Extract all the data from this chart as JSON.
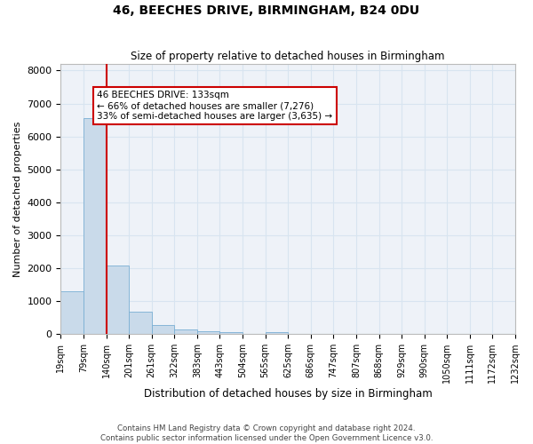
{
  "title1": "46, BEECHES DRIVE, BIRMINGHAM, B24 0DU",
  "title2": "Size of property relative to detached houses in Birmingham",
  "xlabel": "Distribution of detached houses by size in Birmingham",
  "ylabel": "Number of detached properties",
  "annotation_title": "46 BEECHES DRIVE: 133sqm",
  "annotation_line1": "← 66% of detached houses are smaller (7,276)",
  "annotation_line2": "33% of semi-detached houses are larger (3,635) →",
  "footnote1": "Contains HM Land Registry data © Crown copyright and database right 2024.",
  "footnote2": "Contains public sector information licensed under the Open Government Licence v3.0.",
  "property_size_bin": 2,
  "bar_heights": [
    1300,
    6550,
    2080,
    680,
    280,
    140,
    90,
    50,
    0,
    55,
    0,
    0,
    0,
    0,
    0,
    0,
    0,
    0,
    0,
    0
  ],
  "bar_color": "#c9daea",
  "bar_edge_color": "#7aafd4",
  "vline_color": "#cc0000",
  "annotation_box_color": "#cc0000",
  "grid_color": "#d8e4f0",
  "background_color": "#eef2f8",
  "ylim": [
    0,
    8200
  ],
  "yticks": [
    0,
    1000,
    2000,
    3000,
    4000,
    5000,
    6000,
    7000,
    8000
  ],
  "tick_labels": [
    "19sqm",
    "79sqm",
    "140sqm",
    "201sqm",
    "261sqm",
    "322sqm",
    "383sqm",
    "443sqm",
    "504sqm",
    "565sqm",
    "625sqm",
    "686sqm",
    "747sqm",
    "807sqm",
    "868sqm",
    "929sqm",
    "990sqm",
    "1050sqm",
    "1111sqm",
    "1172sqm",
    "1232sqm"
  ],
  "n_bins": 20
}
